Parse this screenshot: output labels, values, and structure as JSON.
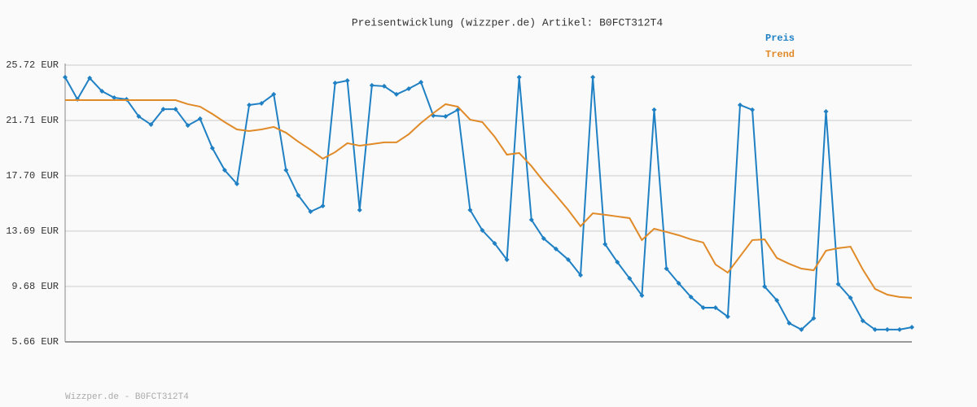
{
  "chart_data": {
    "type": "line",
    "title": "Preisentwicklung (wizzper.de) Artikel: B0FCT312T4",
    "categories": [
      null,
      null,
      null,
      null,
      null,
      null,
      null,
      null,
      null,
      null,
      null,
      null,
      null,
      null,
      null,
      null,
      null,
      null,
      null,
      null,
      null,
      null,
      null,
      null,
      null,
      null,
      null,
      null,
      null,
      null,
      null,
      null,
      null,
      null,
      null,
      null,
      null,
      null,
      null,
      null,
      null,
      null,
      null,
      null,
      null,
      null,
      null,
      null,
      null,
      null,
      null,
      null,
      null,
      null,
      null,
      null,
      null,
      null,
      null,
      null,
      null,
      null,
      null,
      null,
      null,
      null,
      null,
      null,
      null,
      null
    ],
    "series": [
      {
        "name": "Preis",
        "color": "#1f80c4",
        "markers": true,
        "values": [
          24.84,
          23.24,
          24.78,
          23.83,
          23.36,
          23.24,
          22.0,
          21.41,
          22.53,
          22.53,
          21.35,
          21.83,
          19.7,
          18.11,
          17.11,
          22.83,
          22.95,
          23.6,
          18.11,
          16.28,
          15.1,
          15.51,
          24.42,
          24.6,
          15.22,
          24.25,
          24.19,
          23.6,
          24.01,
          24.48,
          22.06,
          22.0,
          22.48,
          15.22,
          13.74,
          12.8,
          11.62,
          24.84,
          14.51,
          13.15,
          12.39,
          11.62,
          10.5,
          24.84,
          12.74,
          11.44,
          10.26,
          9.02,
          22.48,
          10.97,
          9.91,
          8.91,
          8.14,
          8.14,
          7.49,
          22.83,
          22.48,
          9.67,
          8.67,
          7.02,
          6.55,
          7.37,
          22.36,
          9.85,
          8.85,
          7.19,
          6.55,
          6.55,
          6.55,
          6.72
        ]
      },
      {
        "name": "Trend",
        "color": "#e08a28",
        "markers": false,
        "values": [
          23.18,
          23.18,
          23.18,
          23.18,
          23.18,
          23.18,
          23.18,
          23.18,
          23.18,
          23.18,
          22.89,
          22.71,
          22.18,
          21.59,
          21.06,
          20.94,
          21.06,
          21.24,
          20.82,
          20.17,
          19.58,
          18.94,
          19.41,
          20.06,
          19.88,
          20.0,
          20.12,
          20.12,
          20.71,
          21.53,
          22.24,
          22.89,
          22.71,
          21.77,
          21.59,
          20.53,
          19.23,
          19.35,
          18.4,
          17.28,
          16.28,
          15.22,
          14.04,
          14.98,
          14.87,
          14.75,
          14.63,
          13.04,
          13.86,
          13.63,
          13.39,
          13.09,
          12.86,
          11.27,
          10.68,
          11.86,
          13.04,
          13.09,
          11.74,
          11.32,
          10.97,
          10.85,
          12.27,
          12.45,
          12.56,
          10.91,
          9.5,
          9.08,
          8.91,
          8.85
        ]
      }
    ],
    "ylim": [
      5.66,
      25.72
    ],
    "yticks": [
      {
        "value": 5.66,
        "label": "5.66 EUR"
      },
      {
        "value": 9.68,
        "label": "9.68 EUR"
      },
      {
        "value": 13.69,
        "label": "13.69 EUR"
      },
      {
        "value": 17.7,
        "label": "17.70 EUR"
      },
      {
        "value": 21.71,
        "label": "21.71 EUR"
      },
      {
        "value": 25.72,
        "label": "25.72 EUR"
      }
    ],
    "grid": true,
    "legend": "top-right"
  },
  "footer": "Wizzper.de - B0FCT312T4"
}
